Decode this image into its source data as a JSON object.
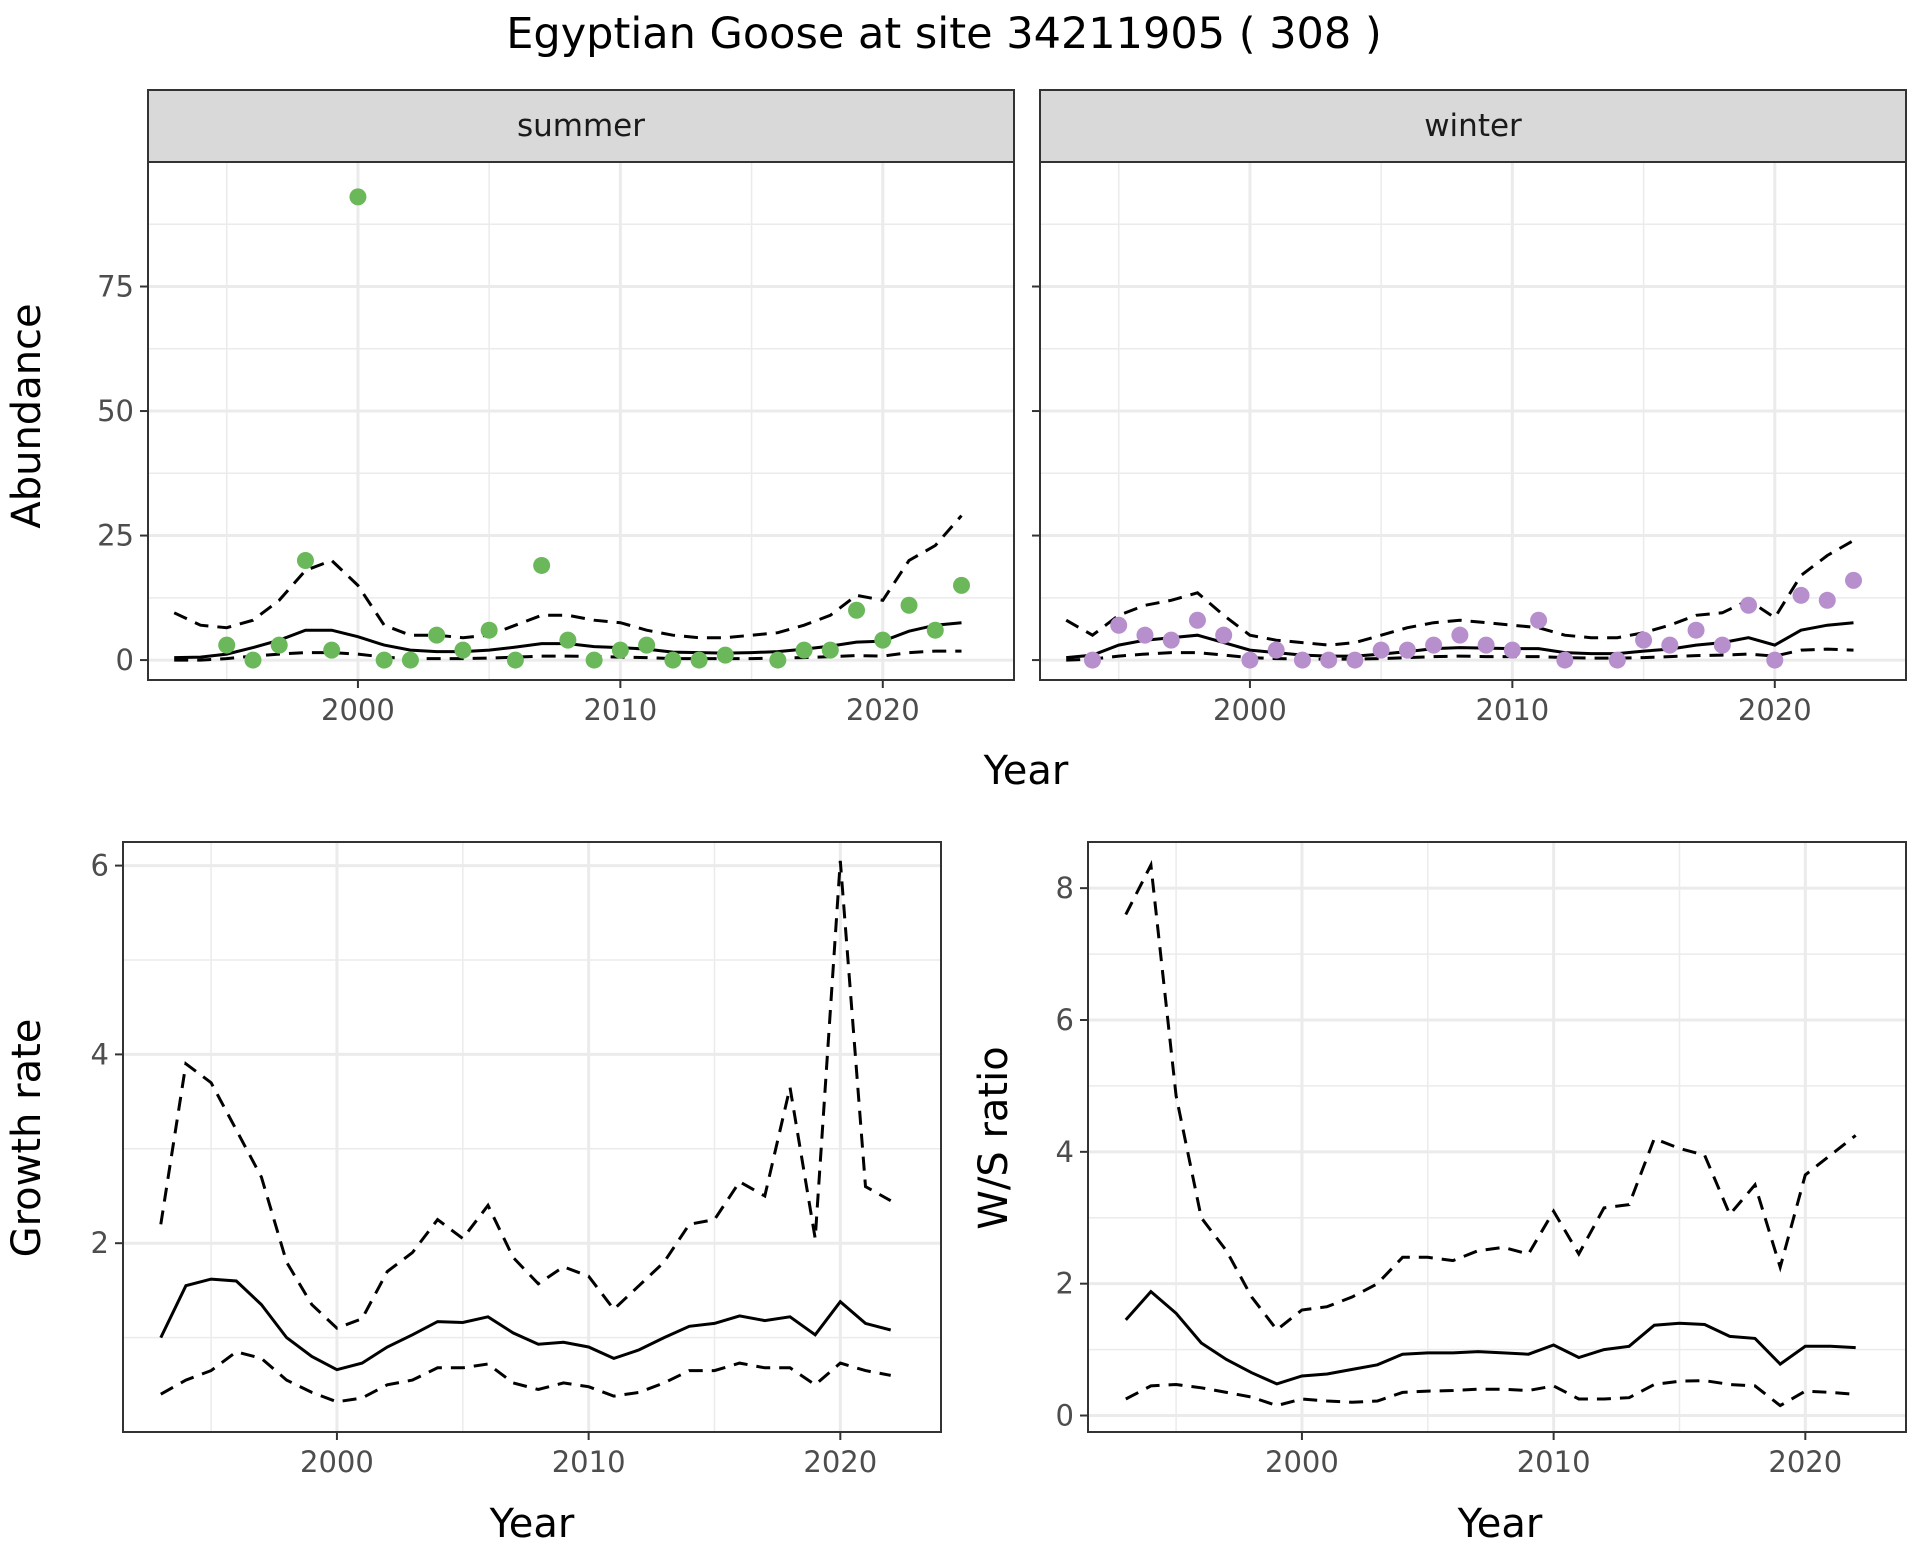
{
  "title": "Egyptian Goose at site 34211905 ( 308 )",
  "colors": {
    "summer_points": "#6ab85a",
    "winter_points": "#b68fcc",
    "strip_fill": "#d9d9d9",
    "line": "#000000",
    "grid": "#ebebeb"
  },
  "chart_data": [
    {
      "type": "scatter",
      "panel": "summer",
      "xlabel": "Year",
      "ylabel": "Abundance",
      "xlim": [
        1992,
        2025
      ],
      "ylim": [
        -4,
        100
      ],
      "xticks": [
        2000,
        2010,
        2020
      ],
      "yticks": [
        0,
        25,
        50,
        75
      ],
      "point_color": "#6ab85a",
      "points": {
        "x": [
          1995,
          1996,
          1997,
          1998,
          1999,
          2000,
          2001,
          2002,
          2003,
          2004,
          2005,
          2006,
          2007,
          2008,
          2009,
          2010,
          2011,
          2012,
          2013,
          2014,
          2016,
          2017,
          2018,
          2019,
          2020,
          2021,
          2022,
          2023
        ],
        "y": [
          3,
          0,
          3,
          20,
          2,
          93,
          0,
          0,
          5,
          2,
          6,
          0,
          19,
          4,
          0,
          2,
          3,
          0,
          0,
          1,
          0,
          2,
          2,
          10,
          4,
          11,
          6,
          15
        ]
      },
      "series": [
        {
          "style": "solid",
          "x": [
            1993,
            1994,
            1995,
            1996,
            1997,
            1998,
            1999,
            2000,
            2001,
            2002,
            2003,
            2004,
            2005,
            2006,
            2007,
            2008,
            2009,
            2010,
            2011,
            2012,
            2013,
            2014,
            2015,
            2016,
            2017,
            2018,
            2019,
            2020,
            2021,
            2022,
            2023
          ],
          "y": [
            0.5,
            0.6,
            1.2,
            2.5,
            4,
            6,
            6,
            4.7,
            3,
            2,
            1.7,
            1.7,
            2,
            2.6,
            3.3,
            3.3,
            2.7,
            2.5,
            2.2,
            1.6,
            1.5,
            1.4,
            1.5,
            1.7,
            2.2,
            2.8,
            3.6,
            3.8,
            5.8,
            7,
            7.5
          ]
        },
        {
          "style": "dashed",
          "x": [
            1993,
            1994,
            1995,
            1996,
            1997,
            1998,
            1999,
            2000,
            2001,
            2002,
            2003,
            2004,
            2005,
            2006,
            2007,
            2008,
            2009,
            2010,
            2011,
            2012,
            2013,
            2014,
            2015,
            2016,
            2017,
            2018,
            2019,
            2020,
            2021,
            2022,
            2023
          ],
          "y": [
            9.5,
            7,
            6.5,
            8,
            12,
            18,
            20,
            15,
            7,
            5,
            5,
            4.5,
            5,
            7,
            9,
            9,
            8,
            7.5,
            6,
            5,
            4.5,
            4.5,
            5,
            5.5,
            7,
            9,
            13,
            12,
            20,
            23,
            29
          ]
        },
        {
          "style": "dashed",
          "x": [
            1993,
            1994,
            1995,
            1996,
            1997,
            1998,
            1999,
            2000,
            2001,
            2002,
            2003,
            2004,
            2005,
            2006,
            2007,
            2008,
            2009,
            2010,
            2011,
            2012,
            2013,
            2014,
            2015,
            2016,
            2017,
            2018,
            2019,
            2020,
            2021,
            2022,
            2023
          ],
          "y": [
            0,
            0,
            0.3,
            0.8,
            1.2,
            1.5,
            1.5,
            1.2,
            0.6,
            0.3,
            0.3,
            0.3,
            0.4,
            0.6,
            0.8,
            0.8,
            0.7,
            0.6,
            0.5,
            0.3,
            0.3,
            0.3,
            0.3,
            0.4,
            0.5,
            0.7,
            0.9,
            0.8,
            1.5,
            1.8,
            1.8
          ]
        }
      ]
    },
    {
      "type": "scatter",
      "panel": "winter",
      "xlabel": "Year",
      "ylabel": "Abundance",
      "xlim": [
        1992,
        2025
      ],
      "ylim": [
        -4,
        100
      ],
      "xticks": [
        2000,
        2010,
        2020
      ],
      "yticks": [
        0,
        25,
        50,
        75
      ],
      "point_color": "#b68fcc",
      "points": {
        "x": [
          1994,
          1995,
          1996,
          1997,
          1998,
          1999,
          2000,
          2001,
          2002,
          2003,
          2004,
          2005,
          2006,
          2007,
          2008,
          2009,
          2010,
          2011,
          2012,
          2014,
          2015,
          2016,
          2017,
          2018,
          2019,
          2020,
          2021,
          2022,
          2023
        ],
        "y": [
          0,
          7,
          5,
          4,
          8,
          5,
          0,
          2,
          0,
          0,
          0,
          2,
          2,
          3,
          5,
          3,
          2,
          8,
          0,
          0,
          4,
          3,
          6,
          3,
          11,
          0,
          13,
          12,
          16
        ]
      },
      "series": [
        {
          "style": "solid",
          "x": [
            1993,
            1994,
            1995,
            1996,
            1997,
            1998,
            1999,
            2000,
            2001,
            2002,
            2003,
            2004,
            2005,
            2006,
            2007,
            2008,
            2009,
            2010,
            2011,
            2012,
            2013,
            2014,
            2015,
            2016,
            2017,
            2018,
            2019,
            2020,
            2021,
            2022,
            2023
          ],
          "y": [
            0.5,
            1,
            3,
            4,
            4.5,
            5,
            3.5,
            2,
            1.5,
            1,
            0.8,
            0.8,
            1.2,
            1.7,
            2.3,
            2.5,
            2.4,
            2.3,
            2.3,
            1.5,
            1.3,
            1.3,
            1.8,
            2.2,
            3,
            3.5,
            4.5,
            3,
            6,
            7,
            7.5
          ]
        },
        {
          "style": "dashed",
          "x": [
            1993,
            1994,
            1995,
            1996,
            1997,
            1998,
            1999,
            2000,
            2001,
            2002,
            2003,
            2004,
            2005,
            2006,
            2007,
            2008,
            2009,
            2010,
            2011,
            2012,
            2013,
            2014,
            2015,
            2016,
            2017,
            2018,
            2019,
            2020,
            2021,
            2022,
            2023
          ],
          "y": [
            8,
            5,
            9,
            11,
            12,
            13.5,
            9,
            5,
            4,
            3.5,
            3,
            3.5,
            5,
            6.5,
            7.5,
            8,
            7.5,
            7,
            6.5,
            5,
            4.5,
            4.5,
            5.5,
            7,
            9,
            9.5,
            12,
            8.5,
            17,
            21,
            24
          ]
        },
        {
          "style": "dashed",
          "x": [
            1993,
            1994,
            1995,
            1996,
            1997,
            1998,
            1999,
            2000,
            2001,
            2002,
            2003,
            2004,
            2005,
            2006,
            2007,
            2008,
            2009,
            2010,
            2011,
            2012,
            2013,
            2014,
            2015,
            2016,
            2017,
            2018,
            2019,
            2020,
            2021,
            2022,
            2023
          ],
          "y": [
            0,
            0.2,
            0.8,
            1.2,
            1.5,
            1.5,
            1,
            0.5,
            0.3,
            0.2,
            0.2,
            0.2,
            0.3,
            0.5,
            0.7,
            0.8,
            0.7,
            0.7,
            0.7,
            0.5,
            0.4,
            0.4,
            0.5,
            0.7,
            0.9,
            1,
            1.2,
            0.8,
            2,
            2.2,
            2
          ]
        }
      ]
    },
    {
      "type": "line",
      "panel": "growth",
      "xlabel": "Year",
      "ylabel": "Growth rate",
      "xlim": [
        1991.5,
        2024
      ],
      "ylim": [
        0.0,
        6.25
      ],
      "xticks": [
        2000,
        2010,
        2020
      ],
      "yticks": [
        2,
        4,
        6
      ],
      "series": [
        {
          "style": "solid",
          "x": [
            1993,
            1994,
            1995,
            1996,
            1997,
            1998,
            1999,
            2000,
            2001,
            2002,
            2003,
            2004,
            2005,
            2006,
            2007,
            2008,
            2009,
            2010,
            2011,
            2012,
            2013,
            2014,
            2015,
            2016,
            2017,
            2018,
            2019,
            2020,
            2021,
            2022
          ],
          "y": [
            1.0,
            1.55,
            1.62,
            1.6,
            1.35,
            1.0,
            0.8,
            0.66,
            0.73,
            0.9,
            1.03,
            1.17,
            1.16,
            1.22,
            1.05,
            0.93,
            0.95,
            0.9,
            0.78,
            0.87,
            1.0,
            1.12,
            1.15,
            1.23,
            1.18,
            1.22,
            1.03,
            1.38,
            1.15,
            1.08
          ]
        },
        {
          "style": "dashed",
          "x": [
            1993,
            1994,
            1995,
            1996,
            1997,
            1998,
            1999,
            2000,
            2001,
            2002,
            2003,
            2004,
            2005,
            2006,
            2007,
            2008,
            2009,
            2010,
            2011,
            2012,
            2013,
            2014,
            2015,
            2016,
            2017,
            2018,
            2019,
            2020,
            2021,
            2022
          ],
          "y": [
            2.2,
            3.9,
            3.7,
            3.2,
            2.7,
            1.8,
            1.35,
            1.1,
            1.2,
            1.7,
            1.9,
            2.25,
            2.05,
            2.4,
            1.85,
            1.57,
            1.75,
            1.65,
            1.3,
            1.55,
            1.8,
            2.2,
            2.25,
            2.65,
            2.5,
            3.65,
            2.05,
            6.05,
            2.6,
            2.45
          ]
        },
        {
          "style": "dashed",
          "x": [
            1993,
            1994,
            1995,
            1996,
            1997,
            1998,
            1999,
            2000,
            2001,
            2002,
            2003,
            2004,
            2005,
            2006,
            2007,
            2008,
            2009,
            2010,
            2011,
            2012,
            2013,
            2014,
            2015,
            2016,
            2017,
            2018,
            2019,
            2020,
            2021,
            2022
          ],
          "y": [
            0.4,
            0.55,
            0.65,
            0.85,
            0.78,
            0.55,
            0.42,
            0.32,
            0.36,
            0.5,
            0.55,
            0.68,
            0.68,
            0.72,
            0.52,
            0.45,
            0.52,
            0.48,
            0.38,
            0.42,
            0.52,
            0.65,
            0.65,
            0.73,
            0.68,
            0.68,
            0.5,
            0.73,
            0.65,
            0.6
          ]
        }
      ]
    },
    {
      "type": "line",
      "panel": "ratio",
      "xlabel": "Year",
      "ylabel": "W/S ratio",
      "xlim": [
        1991.5,
        2024
      ],
      "ylim": [
        -0.25,
        8.7
      ],
      "xticks": [
        2000,
        2010,
        2020
      ],
      "yticks": [
        0,
        2,
        4,
        6,
        8
      ],
      "series": [
        {
          "style": "solid",
          "x": [
            1993,
            1994,
            1995,
            1996,
            1997,
            1998,
            1999,
            2000,
            2001,
            2002,
            2003,
            2004,
            2005,
            2006,
            2007,
            2008,
            2009,
            2010,
            2011,
            2012,
            2013,
            2014,
            2015,
            2016,
            2017,
            2018,
            2019,
            2020,
            2021,
            2022
          ],
          "y": [
            1.45,
            1.88,
            1.55,
            1.1,
            0.85,
            0.65,
            0.48,
            0.6,
            0.63,
            0.7,
            0.77,
            0.93,
            0.95,
            0.95,
            0.97,
            0.95,
            0.93,
            1.07,
            0.88,
            1.0,
            1.05,
            1.37,
            1.4,
            1.38,
            1.2,
            1.17,
            0.78,
            1.05,
            1.05,
            1.03
          ]
        },
        {
          "style": "dashed",
          "x": [
            1993,
            1994,
            1995,
            1996,
            1997,
            1998,
            1999,
            2000,
            2001,
            2002,
            2003,
            2004,
            2005,
            2006,
            2007,
            2008,
            2009,
            2010,
            2011,
            2012,
            2013,
            2014,
            2015,
            2016,
            2017,
            2018,
            2019,
            2020,
            2021,
            2022
          ],
          "y": [
            7.6,
            8.35,
            4.85,
            3.0,
            2.5,
            1.8,
            1.3,
            1.6,
            1.65,
            1.8,
            2.0,
            2.4,
            2.4,
            2.35,
            2.5,
            2.55,
            2.45,
            3.1,
            2.45,
            3.15,
            3.2,
            4.2,
            4.05,
            3.95,
            3.05,
            3.5,
            2.25,
            3.65,
            3.95,
            4.25
          ]
        },
        {
          "style": "dashed",
          "x": [
            1993,
            1994,
            1995,
            1996,
            1997,
            1998,
            1999,
            2000,
            2001,
            2002,
            2003,
            2004,
            2005,
            2006,
            2007,
            2008,
            2009,
            2010,
            2011,
            2012,
            2013,
            2014,
            2015,
            2016,
            2017,
            2018,
            2019,
            2020,
            2021,
            2022
          ],
          "y": [
            0.25,
            0.45,
            0.47,
            0.42,
            0.35,
            0.28,
            0.15,
            0.25,
            0.22,
            0.2,
            0.22,
            0.35,
            0.37,
            0.38,
            0.4,
            0.4,
            0.38,
            0.45,
            0.25,
            0.25,
            0.27,
            0.47,
            0.52,
            0.53,
            0.47,
            0.45,
            0.15,
            0.37,
            0.35,
            0.32
          ]
        }
      ]
    }
  ]
}
